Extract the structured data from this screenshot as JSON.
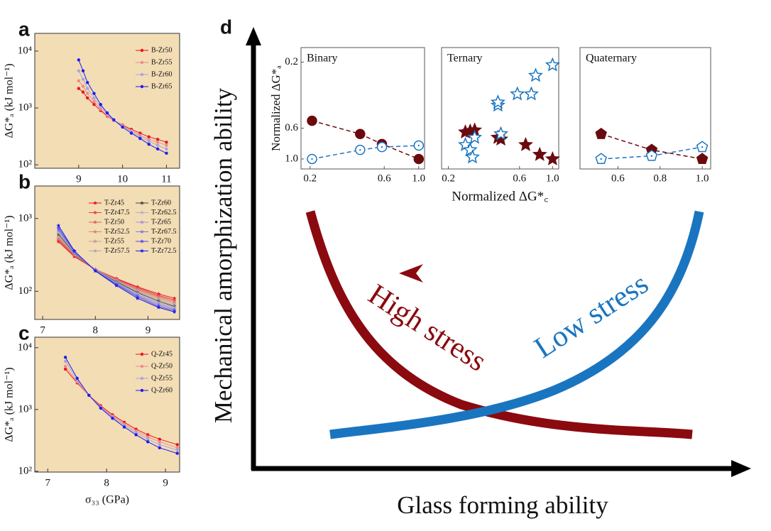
{
  "chart_data": [
    {
      "type": "line",
      "panel": "a",
      "y_label": "ΔG*ₐ (kJ mol⁻¹)",
      "ylog": true,
      "marker": "circle",
      "legend": "upper right",
      "legend_columns": 1,
      "background": "#f3ddb5",
      "xlim": [
        8.0,
        11.3
      ],
      "xticks": [
        9,
        10,
        11
      ],
      "ylim": [
        87,
        20500
      ],
      "yticks": [
        {
          "value": 100,
          "label": "10²"
        },
        {
          "value": 1000,
          "label": "10³"
        },
        {
          "value": 10000,
          "label": "10⁴"
        }
      ],
      "x": [
        9.0,
        9.1,
        9.2,
        9.35,
        9.5,
        9.65,
        9.8,
        10.0,
        10.2,
        10.4,
        10.6,
        10.8,
        11.0
      ],
      "series": [
        {
          "name": "B-Zr50",
          "color": "#e8141c",
          "values": [
            2200,
            1900,
            1500,
            1150,
            900,
            720,
            600,
            500,
            420,
            360,
            310,
            280,
            250
          ]
        },
        {
          "name": "B-Zr55",
          "color": "#ee8a8a",
          "values": [
            3000,
            2400,
            1800,
            1300,
            950,
            740,
            600,
            490,
            400,
            330,
            280,
            250,
            220
          ]
        },
        {
          "name": "B-Zr60",
          "color": "#a9a3e0",
          "values": [
            4500,
            3200,
            2200,
            1500,
            1050,
            780,
            610,
            480,
            380,
            310,
            260,
            220,
            190
          ]
        },
        {
          "name": "B-Zr65",
          "color": "#1c1cf0",
          "values": [
            7000,
            4500,
            2800,
            1800,
            1150,
            820,
            620,
            460,
            360,
            290,
            230,
            190,
            160
          ]
        }
      ]
    },
    {
      "type": "line",
      "panel": "b",
      "y_label": "ΔG*ₐ (kJ mol⁻¹)",
      "ylog": true,
      "marker": "star",
      "legend": "upper right",
      "legend_columns": 2,
      "background": "#f3ddb5",
      "xlim": [
        6.85,
        9.6
      ],
      "xticks": [
        7,
        8,
        9
      ],
      "ylim": [
        41,
        2800
      ],
      "yticks": [
        {
          "value": 100,
          "label": "10²"
        },
        {
          "value": 1000,
          "label": "10³"
        }
      ],
      "x": [
        7.3,
        7.6,
        8.0,
        8.4,
        8.8,
        9.2,
        9.5
      ],
      "series": [
        {
          "name": "T-Zr45",
          "color": "#e8141c",
          "values": [
            480,
            300,
            200,
            150,
            115,
            92,
            80
          ]
        },
        {
          "name": "T-Zr47.5",
          "color": "#e63d40",
          "values": [
            500,
            310,
            200,
            148,
            112,
            88,
            76
          ]
        },
        {
          "name": "T-Zr50",
          "color": "#e06060",
          "values": [
            520,
            315,
            200,
            145,
            108,
            85,
            73
          ]
        },
        {
          "name": "T-Zr52.5",
          "color": "#d98080",
          "values": [
            540,
            320,
            200,
            143,
            105,
            82,
            70
          ]
        },
        {
          "name": "T-Zr55",
          "color": "#c99a9a",
          "values": [
            560,
            325,
            198,
            140,
            102,
            79,
            67
          ]
        },
        {
          "name": "T-Zr57.5",
          "color": "#b0a8a8",
          "values": [
            580,
            330,
            197,
            138,
            99,
            76,
            64
          ]
        },
        {
          "name": "T-Zr60",
          "color": "#444444",
          "values": [
            610,
            335,
            196,
            135,
            96,
            73,
            62
          ]
        },
        {
          "name": "T-Zr62.5",
          "color": "#b3b0cc",
          "values": [
            640,
            340,
            195,
            132,
            93,
            70,
            60
          ]
        },
        {
          "name": "T-Zr65",
          "color": "#9d98d8",
          "values": [
            670,
            345,
            194,
            130,
            90,
            68,
            58
          ]
        },
        {
          "name": "T-Zr67.5",
          "color": "#8078e0",
          "values": [
            700,
            350,
            193,
            127,
            87,
            65,
            56
          ]
        },
        {
          "name": "T-Zr70",
          "color": "#5050e8",
          "values": [
            740,
            355,
            192,
            124,
            84,
            62,
            54
          ]
        },
        {
          "name": "T-Zr72.5",
          "color": "#1c1cf0",
          "values": [
            800,
            360,
            190,
            120,
            80,
            60,
            52
          ]
        }
      ]
    },
    {
      "type": "line",
      "panel": "c",
      "y_label": "ΔG*ₐ (kJ mol⁻¹)",
      "x_label": "σ₃₃ (GPa)",
      "ylog": true,
      "marker": "circle",
      "legend": "upper right",
      "legend_columns": 1,
      "background": "#f3ddb5",
      "xlim": [
        6.78,
        9.24
      ],
      "xticks": [
        7,
        8,
        9
      ],
      "ylim": [
        97,
        14800
      ],
      "yticks": [
        {
          "value": 100,
          "label": "10²"
        },
        {
          "value": 1000,
          "label": "10³"
        },
        {
          "value": 10000,
          "label": "10⁴"
        }
      ],
      "x": [
        7.3,
        7.5,
        7.7,
        7.9,
        8.1,
        8.3,
        8.5,
        8.7,
        8.9,
        9.2
      ],
      "series": [
        {
          "name": "Q-Zr45",
          "color": "#e8141c",
          "values": [
            4500,
            2700,
            1700,
            1150,
            820,
            620,
            480,
            390,
            330,
            270
          ]
        },
        {
          "name": "Q-Zr50",
          "color": "#ee8a8a",
          "values": [
            5000,
            2800,
            1700,
            1100,
            780,
            580,
            450,
            360,
            300,
            240
          ]
        },
        {
          "name": "Q-Zr55",
          "color": "#a9a3e0",
          "values": [
            6000,
            3000,
            1700,
            1080,
            750,
            550,
            420,
            330,
            270,
            220
          ]
        },
        {
          "name": "Q-Zr60",
          "color": "#1c1cf0",
          "values": [
            7000,
            3200,
            1700,
            1050,
            720,
            520,
            390,
            300,
            240,
            195
          ]
        }
      ]
    },
    {
      "type": "scatter",
      "title": "Binary",
      "y_label": "Normalized ΔG*ₐ",
      "xlog": true,
      "ylog": true,
      "connect": true,
      "xlim": [
        0.175,
        1.09
      ],
      "xticks": [
        0.2,
        0.6,
        {
          "value": 1,
          "label": "1.0"
        }
      ],
      "ylim": [
        1.18,
        0.157
      ],
      "yticks": [
        0.2,
        0.6,
        {
          "value": 1,
          "label": "1.0"
        }
      ],
      "series": [
        {
          "color": "#6b0a0e",
          "marker": "circle",
          "filled": true,
          "x": [
            0.206,
            0.42,
            0.58,
            1.0
          ],
          "values": [
            0.53,
            0.66,
            0.78,
            1.0
          ]
        },
        {
          "color": "#1a75c0",
          "marker": "circle",
          "filled": false,
          "x": [
            0.206,
            0.42,
            0.58,
            1.0
          ],
          "values": [
            1.0,
            0.86,
            0.82,
            0.8
          ]
        }
      ]
    },
    {
      "type": "scatter",
      "title": "Ternary",
      "x_label": "Normalized ΔG*꜀",
      "xlog": true,
      "ylog": true,
      "connect": false,
      "xlim": [
        0.18,
        1.1
      ],
      "xticks": [
        0.2,
        0.6,
        {
          "value": 1,
          "label": "1.0"
        }
      ],
      "ylim": [
        1.18,
        0.157
      ],
      "series": [
        {
          "color": "#6b0a0e",
          "marker": "star",
          "filled": true,
          "x": [
            0.26,
            0.28,
            0.3,
            0.43,
            0.45,
            0.66,
            0.82,
            1.0
          ],
          "values": [
            0.64,
            0.63,
            0.62,
            0.7,
            0.72,
            0.79,
            0.93,
            1.0
          ]
        },
        {
          "color": "#1a75c0",
          "marker": "star",
          "filled": false,
          "x": [
            0.26,
            0.28,
            0.29,
            0.3,
            0.43,
            0.43,
            0.45,
            0.58,
            0.72,
            0.77,
            1.0
          ],
          "values": [
            0.79,
            0.86,
            0.97,
            0.7,
            0.41,
            0.39,
            0.66,
            0.34,
            0.34,
            0.25,
            0.21
          ]
        }
      ]
    },
    {
      "type": "scatter",
      "title": "Quaternary",
      "xlog": false,
      "ylog": true,
      "connect": true,
      "xlim": [
        0.42,
        1.04
      ],
      "xticks": [
        0.6,
        0.8,
        {
          "value": 1,
          "label": "1.0"
        }
      ],
      "ylim": [
        1.18,
        0.157
      ],
      "series": [
        {
          "color": "#6b0a0e",
          "marker": "pentagon",
          "filled": true,
          "x": [
            0.52,
            0.76,
            1.0
          ],
          "values": [
            0.66,
            0.86,
            1.0
          ]
        },
        {
          "color": "#1a75c0",
          "marker": "pentagon",
          "filled": false,
          "x": [
            0.52,
            0.76,
            1.0
          ],
          "values": [
            1.0,
            0.95,
            0.82
          ]
        }
      ]
    }
  ],
  "diagram": {
    "panel": "d",
    "y_label": "Mechanical amorphization ability",
    "x_label": "Glass forming ability",
    "curve_high": "High stress",
    "curve_low": "Low stress"
  }
}
